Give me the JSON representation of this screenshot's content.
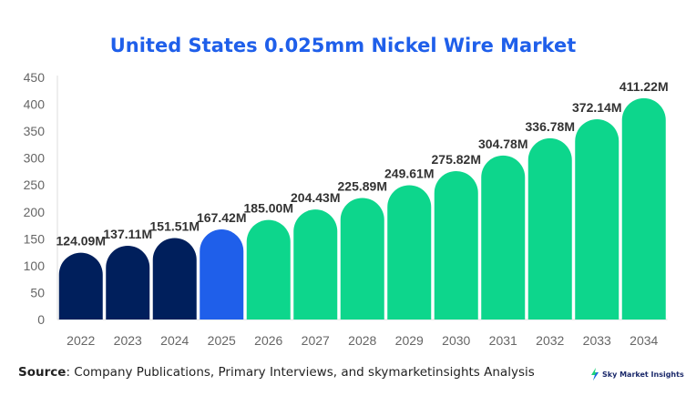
{
  "chart_data": {
    "type": "bar",
    "title": "United States 0.025mm Nickel Wire Market",
    "categories": [
      "2022",
      "2023",
      "2024",
      "2025",
      "2026",
      "2027",
      "2028",
      "2029",
      "2030",
      "2031",
      "2032",
      "2033",
      "2034"
    ],
    "values": [
      124.09,
      137.11,
      151.51,
      167.42,
      185.0,
      204.43,
      225.89,
      249.61,
      275.82,
      304.78,
      336.78,
      372.14,
      411.22
    ],
    "data_labels": [
      "124.09M",
      "137.11M",
      "151.51M",
      "167.42M",
      "185.00M",
      "204.43M",
      "225.89M",
      "249.61M",
      "275.82M",
      "304.78M",
      "336.78M",
      "372.14M",
      "411.22M"
    ],
    "ylim": [
      0,
      450
    ],
    "yticks": [
      0,
      50,
      100,
      150,
      200,
      250,
      300,
      350,
      400,
      450
    ],
    "grid": false,
    "colors": {
      "historical": "#001f5c",
      "current": "#1f5fea",
      "forecast": "#0dd68c"
    },
    "bar_color_groups": [
      "historical",
      "historical",
      "historical",
      "current",
      "forecast",
      "forecast",
      "forecast",
      "forecast",
      "forecast",
      "forecast",
      "forecast",
      "forecast",
      "forecast"
    ]
  },
  "source": {
    "label": "Source",
    "text": ": Company Publications, Primary Interviews, and skymarketinsights Analysis"
  },
  "logo": {
    "text": "Sky Market Insights",
    "icon": "lightning-bolt-icon"
  }
}
